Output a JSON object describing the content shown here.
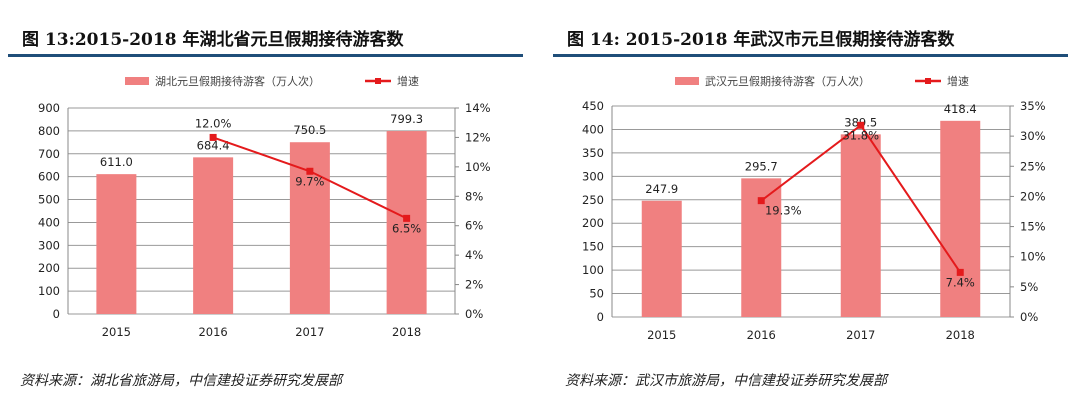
{
  "chart_data": [
    {
      "type": "bar+line",
      "title": "图 13:2015-2018 年湖北省元旦假期接待游客数",
      "categories": [
        "2015",
        "2016",
        "2017",
        "2018"
      ],
      "series": [
        {
          "name": "湖北元旦假期接待游客（万人次）",
          "type": "bar",
          "axis": "left",
          "values": [
            611.0,
            684.4,
            750.5,
            799.3
          ],
          "labels": [
            "611.0",
            "684.4",
            "750.5",
            "799.3"
          ],
          "color": "#f08080"
        },
        {
          "name": "增速",
          "type": "line",
          "axis": "right",
          "values": [
            null,
            12.0,
            9.7,
            6.5
          ],
          "labels": [
            "",
            "12.0%",
            "9.7%",
            "6.5%"
          ],
          "color": "#e41a1c"
        }
      ],
      "ylim": [
        0,
        900
      ],
      "yticks": [
        "0",
        "100",
        "200",
        "300",
        "400",
        "500",
        "600",
        "700",
        "800",
        "900"
      ],
      "y2lim": [
        0,
        14
      ],
      "y2ticks": [
        "0%",
        "2%",
        "4%",
        "6%",
        "8%",
        "10%",
        "12%",
        "14%"
      ],
      "grid": true,
      "legend": "top",
      "source": "资料来源：湖北省旅游局，中信建投证券研究发展部"
    },
    {
      "type": "bar+line",
      "title": "图 14: 2015-2018 年武汉市元旦假期接待游客数",
      "categories": [
        "2015",
        "2016",
        "2017",
        "2018"
      ],
      "series": [
        {
          "name": "武汉元旦假期接待游客（万人次）",
          "type": "bar",
          "axis": "left",
          "values": [
            247.9,
            295.7,
            389.5,
            418.4
          ],
          "labels": [
            "247.9",
            "295.7",
            "389.5",
            "418.4"
          ],
          "color": "#f08080"
        },
        {
          "name": "增速",
          "type": "line",
          "axis": "right",
          "values": [
            null,
            19.3,
            31.8,
            7.4
          ],
          "labels": [
            "",
            "19.3%",
            "31.8%",
            "7.4%"
          ],
          "color": "#e41a1c"
        }
      ],
      "ylim": [
        0,
        450
      ],
      "yticks": [
        "0",
        "50",
        "100",
        "150",
        "200",
        "250",
        "300",
        "350",
        "400",
        "450"
      ],
      "y2lim": [
        0,
        35
      ],
      "y2ticks": [
        "0%",
        "5%",
        "10%",
        "15%",
        "20%",
        "25%",
        "30%",
        "35%"
      ],
      "grid": true,
      "legend": "top",
      "source": "资料来源：武汉市旅游局，中信建投证券研究发展部"
    }
  ]
}
